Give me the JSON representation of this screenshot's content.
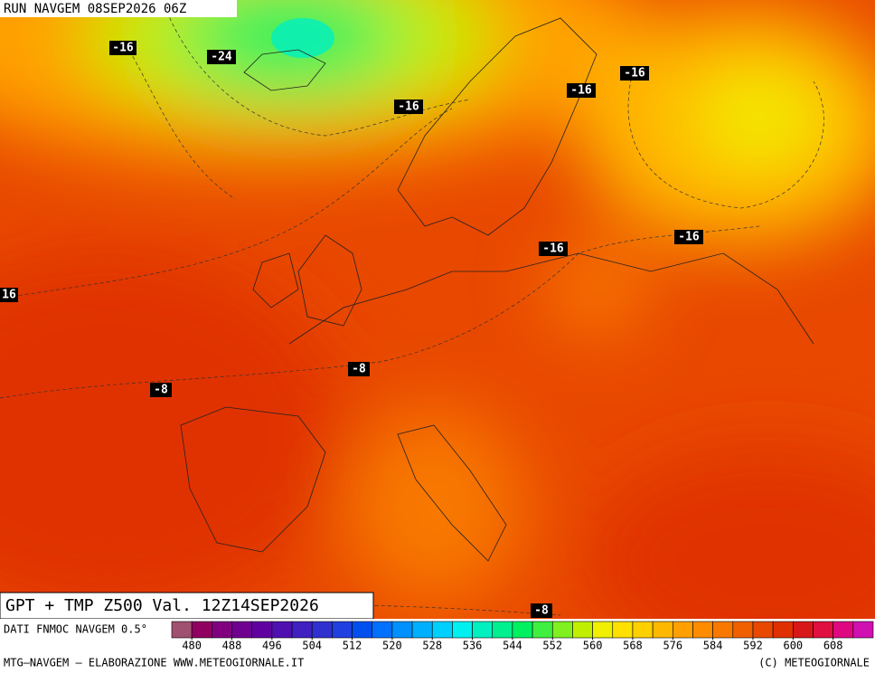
{
  "header": {
    "run": "RUN NAVGEM 08SEP2026 06Z"
  },
  "contour_labels": [
    "-16",
    "-24",
    "-16",
    "-16",
    "-16",
    "-16",
    "-16",
    "16",
    "-8",
    "-8",
    "-8"
  ],
  "map_title": "GPT + TMP Z500 Val. 12Z14SEP2026",
  "colorbar": {
    "source": "DATI FNMOC NAVGEM 0.5°",
    "range": [
      476,
      616
    ],
    "colors": [
      "#a05070",
      "#900060",
      "#800080",
      "#700090",
      "#6000a0",
      "#5010b0",
      "#4020c0",
      "#3030d0",
      "#2040e0",
      "#0050f0",
      "#0070ff",
      "#0090ff",
      "#00b0ff",
      "#00d0ff",
      "#00f0f0",
      "#00f0c0",
      "#00f090",
      "#00f060",
      "#40f040",
      "#80f020",
      "#c0f000",
      "#f0f000",
      "#ffe000",
      "#ffd000",
      "#ffb800",
      "#ffa000",
      "#ff8c00",
      "#f87800",
      "#f06000",
      "#e84800",
      "#e03000",
      "#d81818",
      "#e01040",
      "#e00880",
      "#d010b0"
    ],
    "ticks": [
      480,
      488,
      496,
      504,
      512,
      520,
      528,
      536,
      544,
      552,
      560,
      568,
      576,
      584,
      592,
      600,
      608
    ]
  },
  "footer": {
    "left": "MTG–NAVGEM – ELABORAZIONE WWW.METEOGIORNALE.IT",
    "right": "(C) METEOGIORNALE"
  }
}
